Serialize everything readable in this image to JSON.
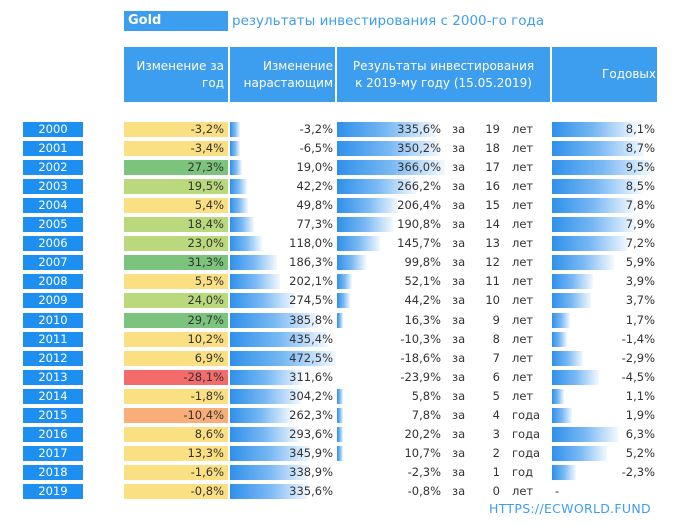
{
  "title": "Gold",
  "subtitle": "результаты инвестирования с 2000-го года",
  "headers": {
    "change": "Изменение за год",
    "change_lines": [
      "Изменение за",
      "год"
    ],
    "cumulative_lines": [
      "Изменение",
      "нарастающим"
    ],
    "result_lines": [
      "Результаты инвестирования",
      "к 2019-му году (15.05.2019)"
    ],
    "annual": "Годовых"
  },
  "za_label": "за",
  "url": "HTTPS://ECWORLD.FUND",
  "colors": {
    "header_blue": "#3d9ef0",
    "year_blue": "#1d8ff0",
    "bar_blue": "#2f90ea",
    "strong_red": "#f46b6c",
    "orange": "#f9ae7a",
    "yellow": "#fadf83",
    "light_green": "#bad97c",
    "green": "#7cc47d"
  },
  "chart_data": {
    "type": "table",
    "title": "Gold",
    "subtitle": "результаты инвестирования с 2000-го года",
    "columns": [
      "Изменение за год",
      "Изменение нарастающим",
      "Результаты инвестирования к 2019-му году (15.05.2019)",
      "Годовых"
    ],
    "rows": [
      {
        "year": "2000",
        "change": "-3,2%",
        "change_value": -3.2,
        "cumulative": "-3,2%",
        "cumulative_value": -3.2,
        "result": "335,6%",
        "result_value": 335.6,
        "years": "19",
        "word": "лет",
        "annual": "8,1%",
        "annual_value": 8.1
      },
      {
        "year": "2001",
        "change": "-3,4%",
        "change_value": -3.4,
        "cumulative": "-6,5%",
        "cumulative_value": -6.5,
        "result": "350,2%",
        "result_value": 350.2,
        "years": "18",
        "word": "лет",
        "annual": "8,7%",
        "annual_value": 8.7
      },
      {
        "year": "2002",
        "change": "27,3%",
        "change_value": 27.3,
        "cumulative": "19,0%",
        "cumulative_value": 19.0,
        "result": "366,0%",
        "result_value": 366.0,
        "years": "17",
        "word": "лет",
        "annual": "9,5%",
        "annual_value": 9.5
      },
      {
        "year": "2003",
        "change": "19,5%",
        "change_value": 19.5,
        "cumulative": "42,2%",
        "cumulative_value": 42.2,
        "result": "266,2%",
        "result_value": 266.2,
        "years": "16",
        "word": "лет",
        "annual": "8,5%",
        "annual_value": 8.5
      },
      {
        "year": "2004",
        "change": "5,4%",
        "change_value": 5.4,
        "cumulative": "49,8%",
        "cumulative_value": 49.8,
        "result": "206,4%",
        "result_value": 206.4,
        "years": "15",
        "word": "лет",
        "annual": "7,8%",
        "annual_value": 7.8
      },
      {
        "year": "2005",
        "change": "18,4%",
        "change_value": 18.4,
        "cumulative": "77,3%",
        "cumulative_value": 77.3,
        "result": "190,8%",
        "result_value": 190.8,
        "years": "14",
        "word": "лет",
        "annual": "7,9%",
        "annual_value": 7.9
      },
      {
        "year": "2006",
        "change": "23,0%",
        "change_value": 23.0,
        "cumulative": "118,0%",
        "cumulative_value": 118.0,
        "result": "145,7%",
        "result_value": 145.7,
        "years": "13",
        "word": "лет",
        "annual": "7,2%",
        "annual_value": 7.2
      },
      {
        "year": "2007",
        "change": "31,3%",
        "change_value": 31.3,
        "cumulative": "186,3%",
        "cumulative_value": 186.3,
        "result": "99,8%",
        "result_value": 99.8,
        "years": "12",
        "word": "лет",
        "annual": "5,9%",
        "annual_value": 5.9
      },
      {
        "year": "2008",
        "change": "5,5%",
        "change_value": 5.5,
        "cumulative": "202,1%",
        "cumulative_value": 202.1,
        "result": "52,1%",
        "result_value": 52.1,
        "years": "11",
        "word": "лет",
        "annual": "3,9%",
        "annual_value": 3.9
      },
      {
        "year": "2009",
        "change": "24,0%",
        "change_value": 24.0,
        "cumulative": "274,5%",
        "cumulative_value": 274.5,
        "result": "44,2%",
        "result_value": 44.2,
        "years": "10",
        "word": "лет",
        "annual": "3,7%",
        "annual_value": 3.7
      },
      {
        "year": "2010",
        "change": "29,7%",
        "change_value": 29.7,
        "cumulative": "385,8%",
        "cumulative_value": 385.8,
        "result": "16,3%",
        "result_value": 16.3,
        "years": "9",
        "word": "лет",
        "annual": "1,7%",
        "annual_value": 1.7
      },
      {
        "year": "2011",
        "change": "10,2%",
        "change_value": 10.2,
        "cumulative": "435,4%",
        "cumulative_value": 435.4,
        "result": "-10,3%",
        "result_value": -10.3,
        "years": "8",
        "word": "лет",
        "annual": "-1,4%",
        "annual_value": -1.4
      },
      {
        "year": "2012",
        "change": "6,9%",
        "change_value": 6.9,
        "cumulative": "472,5%",
        "cumulative_value": 472.5,
        "result": "-18,6%",
        "result_value": -18.6,
        "years": "7",
        "word": "лет",
        "annual": "-2,9%",
        "annual_value": -2.9
      },
      {
        "year": "2013",
        "change": "-28,1%",
        "change_value": -28.1,
        "cumulative": "311,6%",
        "cumulative_value": 311.6,
        "result": "-23,9%",
        "result_value": -23.9,
        "years": "6",
        "word": "лет",
        "annual": "-4,5%",
        "annual_value": -4.5
      },
      {
        "year": "2014",
        "change": "-1,8%",
        "change_value": -1.8,
        "cumulative": "304,2%",
        "cumulative_value": 304.2,
        "result": "5,8%",
        "result_value": 5.8,
        "years": "5",
        "word": "лет",
        "annual": "1,1%",
        "annual_value": 1.1
      },
      {
        "year": "2015",
        "change": "-10,4%",
        "change_value": -10.4,
        "cumulative": "262,3%",
        "cumulative_value": 262.3,
        "result": "7,8%",
        "result_value": 7.8,
        "years": "4",
        "word": "года",
        "annual": "1,9%",
        "annual_value": 1.9
      },
      {
        "year": "2016",
        "change": "8,6%",
        "change_value": 8.6,
        "cumulative": "293,6%",
        "cumulative_value": 293.6,
        "result": "20,2%",
        "result_value": 20.2,
        "years": "3",
        "word": "года",
        "annual": "6,3%",
        "annual_value": 6.3
      },
      {
        "year": "2017",
        "change": "13,3%",
        "change_value": 13.3,
        "cumulative": "345,9%",
        "cumulative_value": 345.9,
        "result": "10,7%",
        "result_value": 10.7,
        "years": "2",
        "word": "года",
        "annual": "5,2%",
        "annual_value": 5.2
      },
      {
        "year": "2018",
        "change": "-1,6%",
        "change_value": -1.6,
        "cumulative": "338,9%",
        "cumulative_value": 338.9,
        "result": "-2,3%",
        "result_value": -2.3,
        "years": "1",
        "word": "год",
        "annual": "-2,3%",
        "annual_value": -2.3
      },
      {
        "year": "2019",
        "change": "-0,8%",
        "change_value": -0.8,
        "cumulative": "335,6%",
        "cumulative_value": 335.6,
        "result": "-0,8%",
        "result_value": -0.8,
        "years": "0",
        "word": "лет",
        "annual": "-",
        "annual_value": null
      }
    ]
  }
}
